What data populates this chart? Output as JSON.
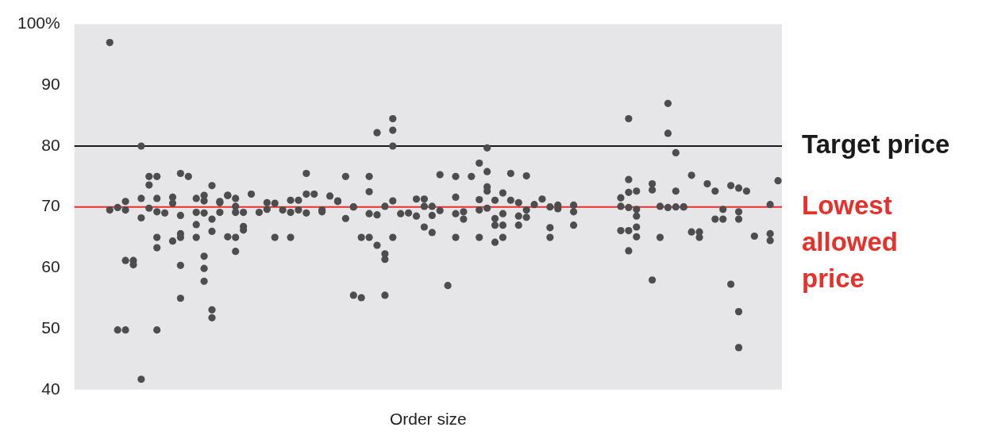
{
  "chart_data": {
    "type": "scatter",
    "xlabel": "Order size",
    "categories": [
      null,
      null,
      null,
      null,
      null,
      null,
      null,
      null,
      null,
      null,
      null,
      null,
      null,
      null,
      null,
      null,
      null,
      null,
      null,
      null,
      null,
      null,
      null,
      null,
      null,
      null,
      null,
      null,
      null,
      null,
      null,
      null,
      null,
      null,
      null,
      null,
      null,
      null,
      null,
      null,
      null,
      null,
      null,
      null,
      null,
      null,
      null,
      null,
      null,
      null,
      null,
      null,
      null,
      null,
      null,
      null,
      null,
      null,
      null,
      null,
      null,
      null,
      null,
      null,
      null,
      null,
      null,
      null,
      null,
      null,
      null,
      null,
      null,
      null,
      null,
      null,
      null,
      null,
      null,
      null,
      null,
      null,
      null,
      null,
      null,
      null,
      null,
      null,
      null,
      null
    ],
    "series": [
      {
        "color": "#4d4d4f",
        "values": [
          null,
          null,
          null,
          null,
          97,
          69.9,
          70.9,
          61.2,
          80,
          75,
          75,
          69,
          71.6,
          75.5,
          75,
          71.4,
          71.9,
          73.5,
          70.9,
          71.9,
          71.4,
          69.1,
          72.1,
          69.1,
          70.7,
          70.6,
          69.5,
          71.1,
          71.1,
          75.5,
          72.1,
          69.5,
          71.8,
          71,
          75,
          70,
          65,
          75,
          82.2,
          70.1,
          84.5,
          68.9,
          69,
          71.3,
          71.3,
          70.1,
          75.3,
          57.1,
          75,
          69.2,
          75,
          77.2,
          79.7,
          71.1,
          72.3,
          75.5,
          70.7,
          75.1,
          70.4,
          71.3,
          70,
          70.3,
          null,
          70.3,
          null,
          null,
          null,
          null,
          null,
          71.5,
          84.5,
          72.6,
          null,
          73.8,
          70.1,
          87,
          78.9,
          70,
          75.2,
          65.9,
          73.8,
          72.6,
          69.6,
          73.5,
          73.1,
          72.6,
          65.2,
          null,
          70.4,
          74.3
        ]
      },
      {
        "color": "#4d4d4f",
        "values": [
          null,
          null,
          null,
          null,
          69.5,
          49.8,
          69.5,
          60.5,
          71.4,
          73.6,
          71.4,
          null,
          70.6,
          68.6,
          null,
          69.1,
          71,
          68,
          70.7,
          71.9,
          70.1,
          66.8,
          null,
          null,
          69.6,
          65,
          null,
          69.1,
          69.5,
          72.1,
          null,
          69.2,
          null,
          70.9,
          68.1,
          70,
          55.1,
          72.5,
          68.7,
          62.3,
          82.6,
          null,
          null,
          68.5,
          70.1,
          68.6,
          69.4,
          null,
          71.6,
          68,
          null,
          71.2,
          75.8,
          68.1,
          68.9,
          71.1,
          68.5,
          69.5,
          null,
          null,
          66.6,
          69.7,
          null,
          69.2,
          null,
          null,
          null,
          null,
          null,
          70.1,
          74.5,
          69.6,
          null,
          72.8,
          65,
          82.1,
          72.6,
          70,
          65.9,
          65,
          null,
          68,
          68,
          57.3,
          69.2,
          null,
          null,
          null,
          65.6,
          null
        ]
      },
      {
        "color": "#4d4d4f",
        "values": [
          null,
          null,
          null,
          null,
          null,
          null,
          61.2,
          null,
          68.2,
          69.8,
          69.2,
          null,
          64.4,
          65.6,
          null,
          67.1,
          69,
          66,
          69.1,
          65.1,
          69.1,
          66.2,
          null,
          null,
          null,
          null,
          null,
          65,
          null,
          69,
          null,
          null,
          null,
          null,
          null,
          55.5,
          null,
          68.9,
          63.7,
          61.4,
          80,
          null,
          null,
          null,
          66.7,
          65.8,
          null,
          null,
          68.9,
          null,
          null,
          69.5,
          73.3,
          67,
          67,
          null,
          67,
          68.3,
          null,
          null,
          65,
          null,
          null,
          67,
          null,
          null,
          null,
          null,
          null,
          66.1,
          72.4,
          68.5,
          null,
          58,
          null,
          69.9,
          70,
          null,
          null,
          null,
          null,
          null,
          null,
          null,
          68,
          null,
          null,
          null,
          64.5,
          null
        ]
      },
      {
        "color": "#4d4d4f",
        "values": [
          null,
          null,
          null,
          null,
          null,
          null,
          49.8,
          null,
          41.7,
          null,
          65,
          null,
          null,
          65,
          null,
          65,
          61.9,
          53.1,
          null,
          null,
          65,
          null,
          null,
          null,
          null,
          null,
          null,
          null,
          null,
          null,
          null,
          null,
          null,
          null,
          null,
          null,
          null,
          65,
          null,
          55.5,
          71,
          null,
          null,
          null,
          null,
          null,
          null,
          null,
          65,
          null,
          null,
          65,
          72.6,
          64.2,
          65,
          null,
          null,
          null,
          null,
          null,
          null,
          null,
          null,
          null,
          null,
          null,
          null,
          null,
          null,
          null,
          69.9,
          66.7,
          null,
          null,
          null,
          null,
          null,
          null,
          null,
          null,
          null,
          null,
          null,
          null,
          52.8,
          null,
          null,
          null,
          null,
          null
        ]
      },
      {
        "color": "#4d4d4f",
        "values": [
          null,
          null,
          null,
          null,
          null,
          null,
          null,
          null,
          null,
          null,
          63.3,
          null,
          null,
          60.4,
          null,
          null,
          59.9,
          51.8,
          null,
          null,
          62.7,
          null,
          null,
          null,
          null,
          null,
          null,
          null,
          null,
          null,
          null,
          null,
          null,
          null,
          null,
          null,
          null,
          null,
          null,
          null,
          65,
          null,
          null,
          null,
          null,
          null,
          null,
          null,
          null,
          null,
          null,
          null,
          69.8,
          null,
          null,
          null,
          null,
          null,
          null,
          null,
          null,
          null,
          null,
          null,
          null,
          null,
          null,
          null,
          null,
          null,
          66.1,
          65.1,
          null,
          null,
          null,
          null,
          null,
          null,
          null,
          null,
          null,
          null,
          null,
          null,
          46.9,
          null,
          null,
          null,
          null,
          null
        ]
      },
      {
        "color": "#4d4d4f",
        "values": [
          null,
          null,
          null,
          null,
          null,
          null,
          null,
          null,
          null,
          null,
          49.8,
          null,
          null,
          55,
          null,
          null,
          57.8,
          null,
          null,
          null,
          null,
          null,
          null,
          null,
          null,
          null,
          null,
          null,
          null,
          null,
          null,
          null,
          null,
          null,
          null,
          null,
          null,
          null,
          null,
          null,
          null,
          null,
          null,
          null,
          null,
          null,
          null,
          null,
          null,
          null,
          null,
          null,
          null,
          null,
          null,
          null,
          null,
          null,
          null,
          null,
          null,
          null,
          null,
          null,
          null,
          null,
          null,
          null,
          null,
          null,
          62.8,
          null,
          null,
          null,
          null,
          null,
          null,
          null,
          null,
          null,
          null,
          null,
          null,
          null,
          null,
          null,
          null,
          null,
          null,
          null
        ]
      }
    ],
    "ylim": [
      40,
      100
    ],
    "yticks": [
      40,
      50,
      60,
      70,
      80,
      {
        "value": 100,
        "label": "100%"
      },
      90
    ],
    "ref_lines": [
      {
        "axis": "y",
        "value": 80,
        "label": "Target price",
        "color": "#1a1a1a"
      },
      {
        "axis": "y",
        "value": 70,
        "label": "Lowest allowed price",
        "color": "#e8302a"
      }
    ],
    "tick_labels": "y",
    "marker": "circle",
    "grid": false,
    "legend": false
  }
}
